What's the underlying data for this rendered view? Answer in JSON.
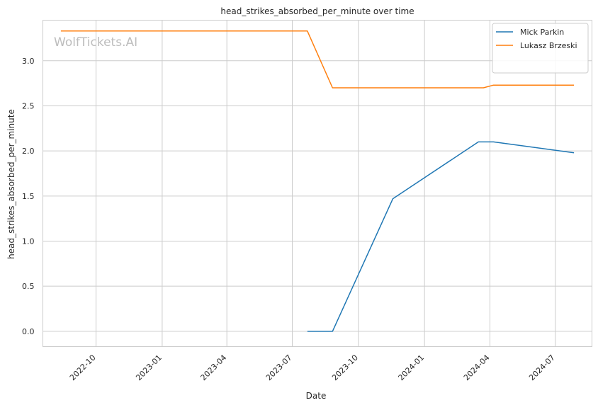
{
  "chart_data": {
    "type": "line",
    "title": "head_strikes_absorbed_per_minute over time",
    "xlabel": "Date",
    "ylabel": "head_strikes_absorbed_per_minute",
    "watermark": "WolfTickets.AI",
    "grid": true,
    "legend_position": "top-right",
    "xlim": [
      "2022-07-19",
      "2024-08-21"
    ],
    "ylim": [
      -0.17,
      3.45
    ],
    "x_ticks": [
      "2022-10",
      "2023-01",
      "2023-04",
      "2023-07",
      "2023-10",
      "2024-01",
      "2024-04",
      "2024-07"
    ],
    "y_ticks": [
      "0.0",
      "0.5",
      "1.0",
      "1.5",
      "2.0",
      "2.5",
      "3.0"
    ],
    "series": [
      {
        "name": "Mick Parkin",
        "color": "#1f77b4",
        "x": [
          "2023-07-22",
          "2023-08-26",
          "2023-11-18",
          "2024-03-16",
          "2024-04-06",
          "2024-07-27"
        ],
        "y": [
          0.0,
          0.0,
          1.47,
          2.1,
          2.1,
          1.98
        ]
      },
      {
        "name": "Lukasz Brzeski",
        "color": "#ff7f0e",
        "x": [
          "2022-08-13",
          "2023-07-22",
          "2023-08-26",
          "2024-03-23",
          "2024-04-06",
          "2024-07-27"
        ],
        "y": [
          3.33,
          3.33,
          2.7,
          2.7,
          2.73,
          2.73
        ]
      }
    ]
  }
}
